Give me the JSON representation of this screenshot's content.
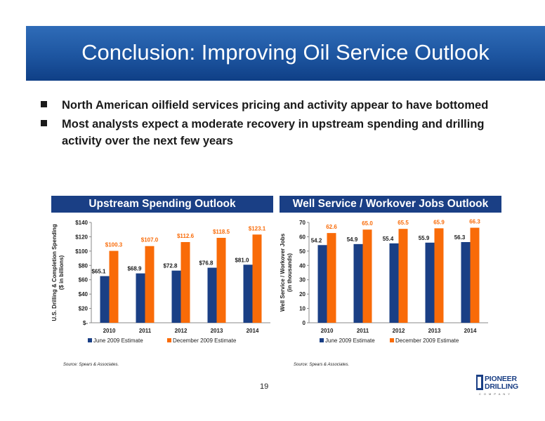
{
  "slide": {
    "title": "Conclusion: Improving Oil Service Outlook",
    "bullets": [
      "North American oilfield services pricing and activity appear to have bottomed",
      "Most analysts expect a moderate recovery in upstream spending and drilling activity over the next few years"
    ],
    "page_number": "19",
    "logo": {
      "line1": "PIONEER",
      "line2": "DRILLING",
      "line3": "COMPANY"
    }
  },
  "chart_data": [
    {
      "type": "bar",
      "title": "Upstream Spending Outlook",
      "ylabel_line1": "U.S. Drilling & Completion Spending",
      "ylabel_line2": "($ in billions)",
      "categories": [
        "2010",
        "2011",
        "2012",
        "2013",
        "2014"
      ],
      "ylim": [
        0,
        140
      ],
      "yticks": [
        "$-",
        "$20",
        "$40",
        "$60",
        "$80",
        "$100",
        "$120",
        "$140"
      ],
      "series": [
        {
          "name": "June 2009 Estimate",
          "color": "#1a3f85",
          "values": [
            65.1,
            68.9,
            72.8,
            76.8,
            81.0
          ],
          "labels": [
            "$65.1",
            "$68.9",
            "$72.8",
            "$76.8",
            "$81.0"
          ]
        },
        {
          "name": "December 2009 Estimate",
          "color": "#f96b08",
          "values": [
            100.3,
            107.0,
            112.6,
            118.5,
            123.1
          ],
          "labels": [
            "$100.3",
            "$107.0",
            "$112.6",
            "$118.5",
            "$123.1"
          ]
        }
      ],
      "source": "Source: Spears & Associates."
    },
    {
      "type": "bar",
      "title": "Well Service / Workover Jobs Outlook",
      "ylabel_line1": "Well Service / Workover Jobs",
      "ylabel_line2": "(in thousands)",
      "categories": [
        "2010",
        "2011",
        "2012",
        "2013",
        "2014"
      ],
      "ylim": [
        0,
        70
      ],
      "yticks": [
        "0",
        "10",
        "20",
        "30",
        "40",
        "50",
        "60",
        "70"
      ],
      "series": [
        {
          "name": "June 2009 Estimate",
          "color": "#1a3f85",
          "values": [
            54.2,
            54.9,
            55.4,
            55.9,
            56.3
          ],
          "labels": [
            "54.2",
            "54.9",
            "55.4",
            "55.9",
            "56.3"
          ]
        },
        {
          "name": "December 2009 Estimate",
          "color": "#f96b08",
          "values": [
            62.6,
            65.0,
            65.5,
            65.9,
            66.3
          ],
          "labels": [
            "62.6",
            "65.0",
            "65.5",
            "65.9",
            "66.3"
          ]
        }
      ],
      "source": "Source: Spears & Associates."
    }
  ]
}
